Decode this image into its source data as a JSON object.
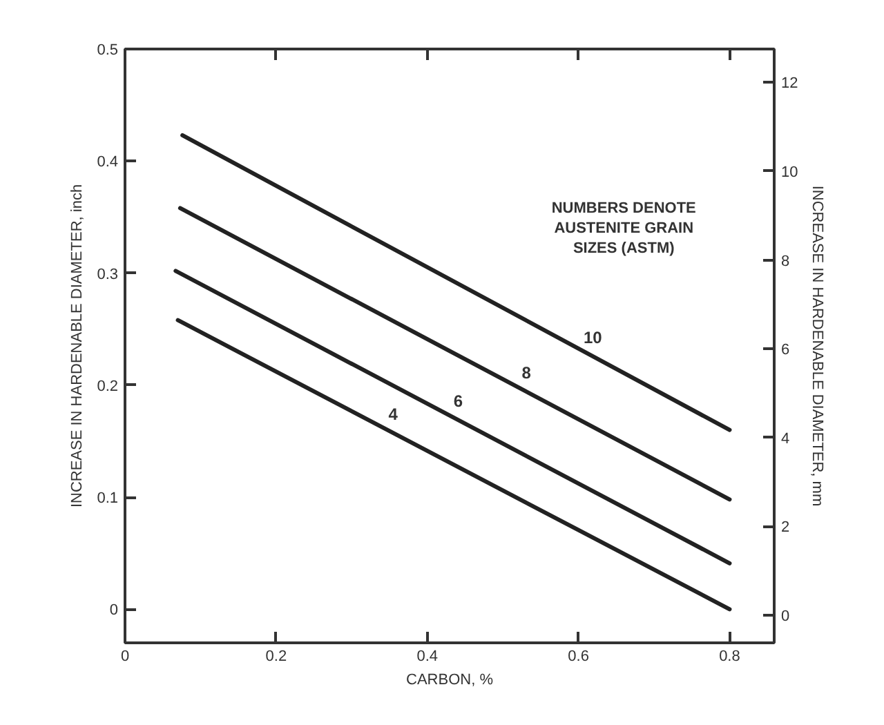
{
  "chart_data": {
    "type": "line",
    "xlabel": "CARBON, %",
    "ylabel": "INCREASE IN HARDENABLE DIAMETER, inch",
    "y2label": "INCREASE IN HARDENABLE DIAMETER, mm",
    "xlim": [
      0,
      0.859
    ],
    "xticks": [
      0,
      0.2,
      0.4,
      0.6,
      0.8
    ],
    "ylim": [
      -0.03,
      0.5
    ],
    "yticks": [
      0,
      0.1,
      0.2,
      0.3,
      0.4,
      0.5
    ],
    "y2lim": [
      -0.62,
      12.75
    ],
    "y2ticks": [
      0,
      2,
      4,
      6,
      8,
      10,
      12
    ],
    "grid": false,
    "marker": "none",
    "line_style": "solid",
    "series": [
      {
        "name": "10",
        "color": "#222222",
        "x": [
          0.076,
          0.8
        ],
        "values": [
          0.423,
          0.16
        ]
      },
      {
        "name": "8",
        "color": "#222222",
        "x": [
          0.073,
          0.8
        ],
        "values": [
          0.358,
          0.098
        ]
      },
      {
        "name": "6",
        "color": "#222222",
        "x": [
          0.067,
          0.8
        ],
        "values": [
          0.302,
          0.041
        ]
      },
      {
        "name": "4",
        "color": "#222222",
        "x": [
          0.07,
          0.8
        ],
        "values": [
          0.258,
          0.0
        ]
      }
    ],
    "annotations": [
      "NUMBERS DENOTE\nAUSTENITE GRAIN\nSIZES (ASTM)"
    ]
  }
}
